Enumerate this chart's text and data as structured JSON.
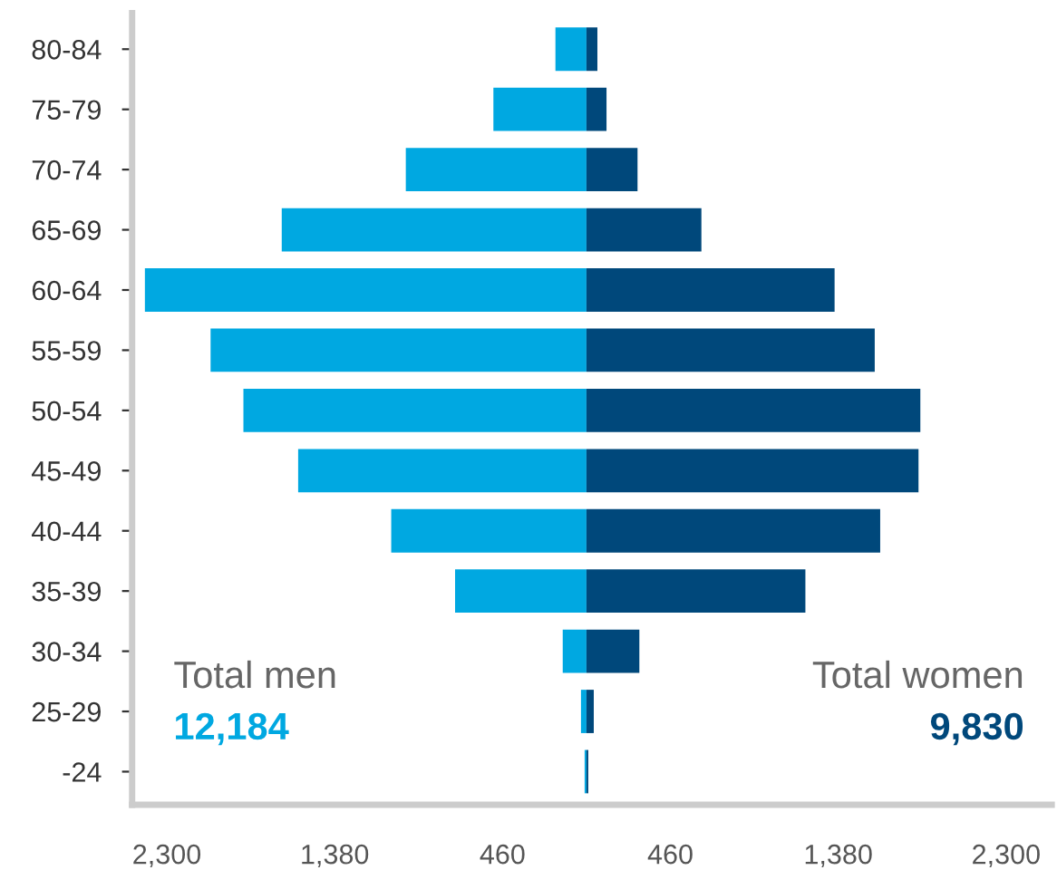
{
  "chart_data": {
    "type": "bar",
    "orientation": "horizontal",
    "stacked": true,
    "categories": [
      "80-84",
      "75-79",
      "70-74",
      "65-69",
      "60-64",
      "55-59",
      "50-54",
      "45-49",
      "40-44",
      "35-39",
      "30-34",
      "25-29",
      "-24"
    ],
    "series": [
      {
        "color": "#00a8e1",
        "values": [
          -170,
          -510,
          -990,
          -1670,
          -2420,
          -2060,
          -1880,
          -1580,
          -1070,
          -720,
          -130,
          -30,
          -10
        ]
      },
      {
        "color": "#00487b",
        "values": [
          60,
          110,
          280,
          630,
          1360,
          1580,
          1830,
          1820,
          1610,
          1200,
          290,
          40,
          10
        ]
      }
    ],
    "xlim": [
      -2490,
      2550
    ],
    "xticks": [
      {
        "value": -2300,
        "label": "2,300"
      },
      {
        "value": -1380,
        "label": "1,380"
      },
      {
        "value": -460,
        "label": "460"
      },
      {
        "value": 460,
        "label": "460"
      },
      {
        "value": 1380,
        "label": "1,380"
      },
      {
        "value": 2300,
        "label": "2,300"
      }
    ],
    "annotations": [
      "Total men",
      "12,184",
      "Total women",
      "9,830"
    ],
    "grid": false,
    "legend": false
  }
}
